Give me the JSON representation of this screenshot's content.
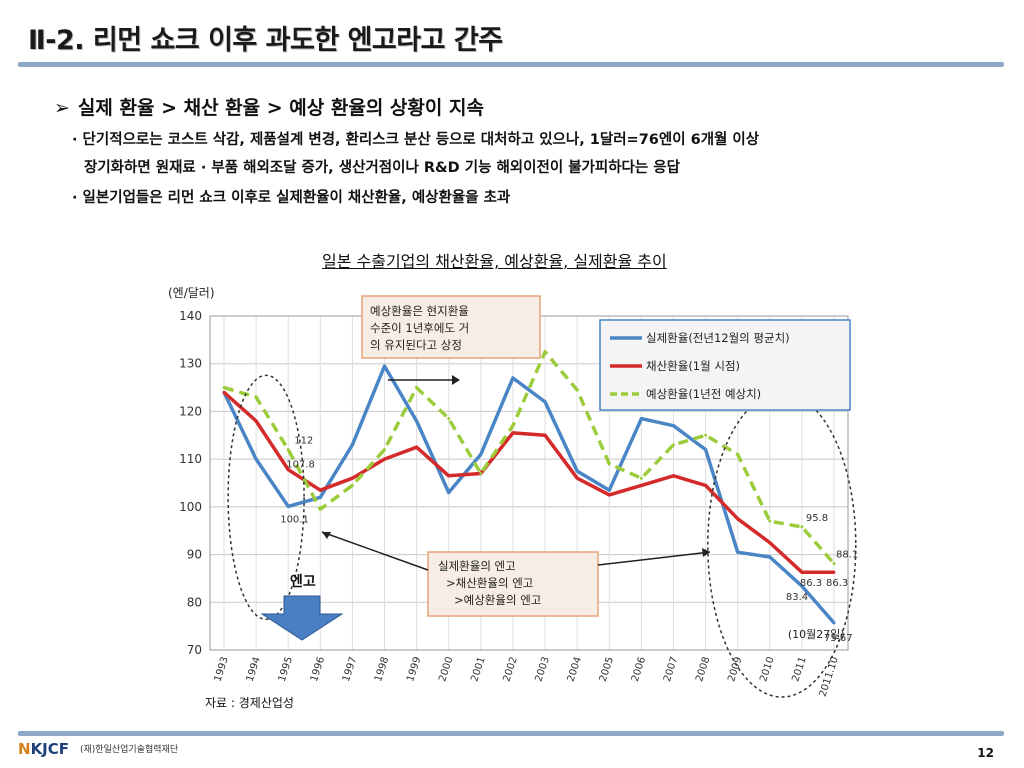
{
  "slide": {
    "title": "Ⅱ-2. 리먼 쇼크 이후 과도한 엔고라고 간주",
    "headline_arrow": "➢",
    "headline": "실제 환율 > 채산 환율 > 예상 환율의 상황이 지속",
    "bullets": [
      "· 단기적으로는 코스트 삭감, 제품설계 변경, 환리스크 분산 등으로 대처하고 있으나, 1달러=76엔이 6개월 이상",
      "장기화하면 원재료 · 부품 해외조달 증가, 생산거점이나 R&D 기능 해외이전이 불가피하다는 응답",
      "· 일본기업들은 리먼 쇼크 이후로 실제환율이 채산환율, 예상환율을 초과"
    ],
    "chart_title": "일본 수출기업의 채산환율, 예상환율, 실제환율 추이",
    "source": "자료 : 경제산업성",
    "footer_logo_mark": "N",
    "footer_logo": "KJCF",
    "footer_org": "(재)한일산업기술협력재단",
    "page_number": "12"
  },
  "chart_data": {
    "type": "line",
    "unit_label": "(엔/달러)",
    "categories": [
      "1993",
      "1994",
      "1995",
      "1996",
      "1997",
      "1998",
      "1999",
      "2000",
      "2001",
      "2002",
      "2003",
      "2004",
      "2005",
      "2006",
      "2007",
      "2008",
      "2009",
      "2010",
      "2011",
      "2011.10"
    ],
    "ylim": [
      70,
      140
    ],
    "yticks": [
      70,
      80,
      90,
      100,
      110,
      120,
      130,
      140
    ],
    "grid": true,
    "legend_position": "top-right",
    "colors": {
      "actual": "#4a86c6",
      "breakeven": "#d42a2a",
      "expected": "#9ccc3c"
    },
    "series": [
      {
        "key": "actual",
        "name": "실제환율(전년12월의 평균치)",
        "dash": "solid",
        "values": [
          124,
          110,
          100.1,
          102,
          113,
          129.5,
          118,
          103,
          111,
          127,
          122,
          107.5,
          103.5,
          118.5,
          117,
          112,
          90.5,
          89.5,
          83.4,
          75.67
        ]
      },
      {
        "key": "breakeven",
        "name": "채산환율(1월 시점)",
        "dash": "solid",
        "values": [
          124,
          118,
          107.8,
          103.5,
          106,
          110,
          112.5,
          106.5,
          107,
          115.5,
          115,
          106,
          102.5,
          104.5,
          106.5,
          104.5,
          97.5,
          92.5,
          86.3,
          86.3
        ]
      },
      {
        "key": "expected",
        "name": "예상환율(1년전 예상치)",
        "dash": "dashed",
        "values": [
          125,
          123,
          112,
          99.5,
          104.5,
          112,
          125,
          118.5,
          107,
          117,
          132.5,
          124.5,
          109,
          106,
          113,
          115,
          111,
          97,
          95.8,
          88.1
        ]
      }
    ],
    "data_labels": [
      {
        "series": "expected",
        "index": 2,
        "text": "112"
      },
      {
        "series": "breakeven",
        "index": 2,
        "text": "107.8"
      },
      {
        "series": "actual",
        "index": 2,
        "text": "100.1"
      },
      {
        "series": "expected",
        "index": 18,
        "text": "95.8"
      },
      {
        "series": "expected",
        "index": 19,
        "text": "88.1"
      },
      {
        "series": "breakeven",
        "index": 18,
        "text": "86.3"
      },
      {
        "series": "breakeven",
        "index": 19,
        "text": "86.3"
      },
      {
        "series": "actual",
        "index": 18,
        "text": "83.4"
      },
      {
        "series": "actual",
        "index": 19,
        "text": "75.67"
      }
    ],
    "annotations": {
      "expected_note": [
        "예상환율은 현지환율",
        "수준이 1년후에도 거",
        "의 유지된다고 상정"
      ],
      "yen_strength_note": [
        "실제환율의 엔고",
        ">채산환율의 엔고",
        ">예상환율의 엔고"
      ],
      "yen_strength_label": "엔고",
      "oct_note": "(10월27일)"
    }
  }
}
